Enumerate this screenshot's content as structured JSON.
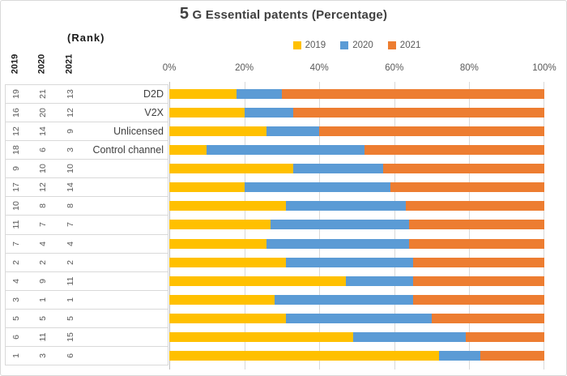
{
  "title": "5 G Essential patents (Percentage)",
  "rank_label": "(Rank)",
  "rank_table": {
    "header": [
      "2019",
      "2020",
      "2021"
    ],
    "rows": [
      [
        19,
        21,
        13
      ],
      [
        16,
        20,
        12
      ],
      [
        12,
        14,
        9
      ],
      [
        18,
        6,
        3
      ],
      [
        9,
        10,
        10
      ],
      [
        17,
        12,
        14
      ],
      [
        10,
        8,
        8
      ],
      [
        11,
        7,
        7
      ],
      [
        7,
        4,
        4
      ],
      [
        2,
        2,
        2
      ],
      [
        4,
        9,
        11
      ],
      [
        3,
        1,
        1
      ],
      [
        5,
        5,
        5
      ],
      [
        6,
        11,
        15
      ],
      [
        1,
        3,
        6
      ]
    ]
  },
  "colors": {
    "series_2019": "#FFC000",
    "series_2020": "#5B9BD5",
    "series_2021": "#ED7D31",
    "gridline": "#D9D9D9",
    "axis_text": "#595959",
    "title_text": "#404040"
  },
  "chart_data": {
    "type": "bar",
    "orientation": "horizontal",
    "stacked": true,
    "percent_stacked": true,
    "title": "5 G Essential patents (Percentage)",
    "categories": [
      "D2D",
      "V2X",
      "Unlicensed",
      "Control channel",
      "",
      "",
      "",
      "",
      "",
      "",
      "",
      "",
      "",
      "",
      ""
    ],
    "series": [
      {
        "name": "2019",
        "color": "#FFC000",
        "values": [
          18,
          20,
          26,
          10,
          33,
          20,
          31,
          27,
          26,
          31,
          47,
          28,
          31,
          49,
          72
        ]
      },
      {
        "name": "2020",
        "color": "#5B9BD5",
        "values": [
          12,
          13,
          14,
          42,
          24,
          39,
          32,
          37,
          38,
          34,
          18,
          37,
          39,
          30,
          11
        ]
      },
      {
        "name": "2021",
        "color": "#ED7D31",
        "values": [
          70,
          67,
          60,
          48,
          43,
          41,
          37,
          36,
          36,
          35,
          35,
          35,
          30,
          21,
          17
        ]
      }
    ],
    "x_ticks": [
      "0%",
      "20%",
      "40%",
      "60%",
      "80%",
      "100%"
    ],
    "xlim": [
      0,
      100
    ],
    "grid": true,
    "legend_position": "top"
  }
}
